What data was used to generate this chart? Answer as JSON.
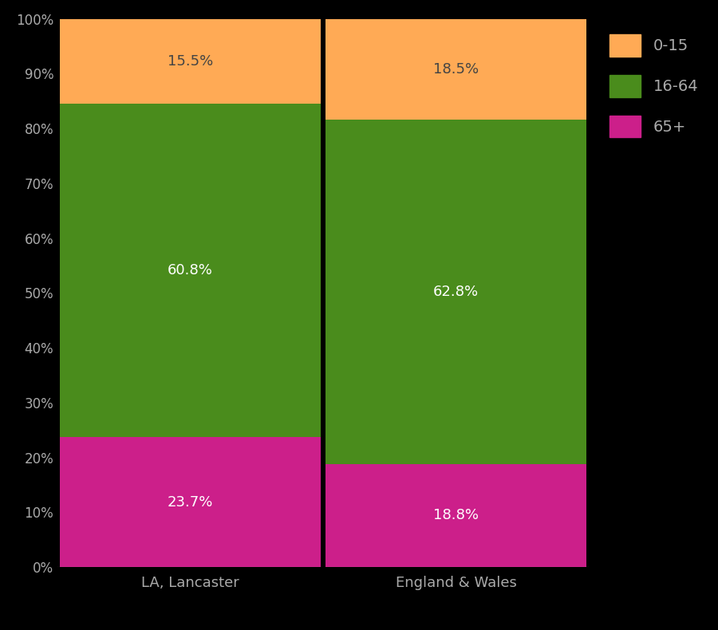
{
  "categories": [
    "LA, Lancaster",
    "England & Wales"
  ],
  "segments": {
    "65+": [
      23.7,
      18.8
    ],
    "16-64": [
      60.8,
      62.8
    ],
    "0-15": [
      15.5,
      18.5
    ]
  },
  "colors": {
    "0-15": "#FFAA55",
    "16-64": "#4A8C1C",
    "65+": "#CC1F8A"
  },
  "label_colors": {
    "0-15": "#444444",
    "16-64": "#ffffff",
    "65+": "#ffffff"
  },
  "yticks": [
    0,
    10,
    20,
    30,
    40,
    50,
    60,
    70,
    80,
    90,
    100
  ],
  "ytick_labels": [
    "0%",
    "10%",
    "20%",
    "30%",
    "40%",
    "50%",
    "60%",
    "70%",
    "80%",
    "90%",
    "100%"
  ],
  "background_color": "#000000",
  "text_color": "#aaaaaa",
  "bar_width": 0.98,
  "legend_labels": [
    "0-15",
    "16-64",
    "65+"
  ]
}
